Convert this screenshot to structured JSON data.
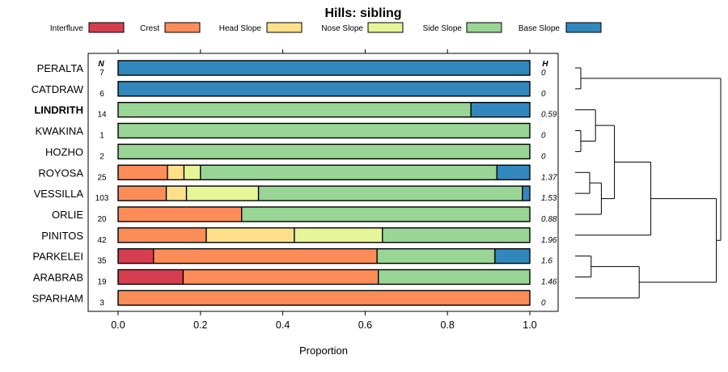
{
  "chart_data": {
    "type": "bar",
    "orientation": "horizontal",
    "stacked": true,
    "title": "Hills: sibling",
    "xlabel": "Proportion",
    "xlim": [
      0,
      1
    ],
    "xticks": [
      "0.0",
      "0.2",
      "0.4",
      "0.6",
      "0.8",
      "1.0"
    ],
    "n_header": "N",
    "h_header": "H",
    "series": [
      {
        "name": "Interfluve",
        "color": "#D53E4F"
      },
      {
        "name": "Crest",
        "color": "#FC8D59"
      },
      {
        "name": "Head Slope",
        "color": "#FEE08B"
      },
      {
        "name": "Nose Slope",
        "color": "#E6F598"
      },
      {
        "name": "Side Slope",
        "color": "#99D594"
      },
      {
        "name": "Base Slope",
        "color": "#3288BD"
      }
    ],
    "rows": [
      {
        "label": "PERALTA",
        "n": "7",
        "h": "0",
        "bold": false,
        "values": [
          0,
          0,
          0,
          0,
          0,
          1.0
        ]
      },
      {
        "label": "CATDRAW",
        "n": "6",
        "h": "0",
        "bold": false,
        "values": [
          0,
          0,
          0,
          0,
          0,
          1.0
        ]
      },
      {
        "label": "LINDRITH",
        "n": "14",
        "h": "0.59",
        "bold": true,
        "values": [
          0,
          0,
          0,
          0,
          0.857,
          0.143
        ]
      },
      {
        "label": "KWAKINA",
        "n": "1",
        "h": "0",
        "bold": false,
        "values": [
          0,
          0,
          0,
          0,
          1.0,
          0
        ]
      },
      {
        "label": "HOZHO",
        "n": "2",
        "h": "0",
        "bold": false,
        "values": [
          0,
          0,
          0,
          0,
          1.0,
          0
        ]
      },
      {
        "label": "ROYOSA",
        "n": "25",
        "h": "1.37",
        "bold": false,
        "values": [
          0,
          0.12,
          0.04,
          0.04,
          0.72,
          0.08
        ]
      },
      {
        "label": "VESSILLA",
        "n": "103",
        "h": "1.53",
        "bold": false,
        "values": [
          0,
          0.117,
          0.049,
          0.175,
          0.641,
          0.018
        ]
      },
      {
        "label": "ORLIE",
        "n": "20",
        "h": "0.88",
        "bold": false,
        "values": [
          0,
          0.3,
          0,
          0,
          0.7,
          0
        ]
      },
      {
        "label": "PINITOS",
        "n": "42",
        "h": "1.96",
        "bold": false,
        "values": [
          0,
          0.214,
          0.214,
          0.214,
          0.358,
          0
        ]
      },
      {
        "label": "PARKELEI",
        "n": "35",
        "h": "1.6",
        "bold": false,
        "values": [
          0.086,
          0.543,
          0,
          0,
          0.286,
          0.085
        ]
      },
      {
        "label": "ARABRAB",
        "n": "19",
        "h": "1.46",
        "bold": false,
        "values": [
          0.158,
          0.474,
          0,
          0,
          0.368,
          0
        ]
      },
      {
        "label": "SPARHAM",
        "n": "3",
        "h": "0",
        "bold": false,
        "values": [
          0,
          1.0,
          0,
          0,
          0,
          0
        ]
      }
    ],
    "dendrogram": {
      "leaf_order": [
        "PERALTA",
        "CATDRAW",
        "LINDRITH",
        "KWAKINA",
        "HOZHO",
        "ROYOSA",
        "VESSILLA",
        "ORLIE",
        "PINITOS",
        "PARKELEI",
        "ARABRAB",
        "SPARHAM"
      ],
      "merges": [
        {
          "a": 0,
          "b": 1,
          "height": 0.0
        },
        {
          "a": 3,
          "b": 4,
          "height": 0.0
        },
        {
          "a": 2,
          "b": -2,
          "height": 0.14
        },
        {
          "a": 5,
          "b": 6,
          "height": 0.1
        },
        {
          "a": -4,
          "b": 7,
          "height": 0.18
        },
        {
          "a": -3,
          "b": -5,
          "height": 0.27
        },
        {
          "a": -6,
          "b": 8,
          "height": 0.52
        },
        {
          "a": 9,
          "b": 10,
          "height": 0.11
        },
        {
          "a": -8,
          "b": 11,
          "height": 0.44
        },
        {
          "a": -7,
          "b": -9,
          "height": 0.97
        },
        {
          "a": -1,
          "b": -10,
          "height": 1.0
        }
      ]
    }
  }
}
